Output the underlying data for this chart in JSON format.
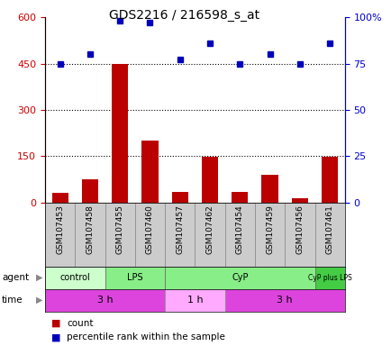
{
  "title": "GDS2216 / 216598_s_at",
  "samples": [
    "GSM107453",
    "GSM107458",
    "GSM107455",
    "GSM107460",
    "GSM107457",
    "GSM107462",
    "GSM107454",
    "GSM107459",
    "GSM107456",
    "GSM107461"
  ],
  "counts": [
    30,
    75,
    450,
    200,
    35,
    148,
    35,
    90,
    15,
    148
  ],
  "percentile_ranks": [
    75,
    80,
    98,
    97,
    77,
    86,
    75,
    80,
    75,
    86
  ],
  "ylim_left": [
    0,
    600
  ],
  "ylim_right": [
    0,
    100
  ],
  "yticks_left": [
    0,
    150,
    300,
    450,
    600
  ],
  "yticks_right": [
    0,
    25,
    50,
    75,
    100
  ],
  "hlines": [
    150,
    300,
    450
  ],
  "agent_groups": [
    {
      "label": "control",
      "start": 0,
      "end": 2,
      "color": "#ccffcc"
    },
    {
      "label": "LPS",
      "start": 2,
      "end": 4,
      "color": "#88ee88"
    },
    {
      "label": "CyP",
      "start": 4,
      "end": 9,
      "color": "#88ee88"
    },
    {
      "label": "CyP plus LPS",
      "start": 9,
      "end": 10,
      "color": "#44cc44"
    }
  ],
  "time_groups": [
    {
      "label": "3 h",
      "start": 0,
      "end": 4,
      "color": "#dd44dd"
    },
    {
      "label": "1 h",
      "start": 4,
      "end": 6,
      "color": "#ffaaff"
    },
    {
      "label": "3 h",
      "start": 6,
      "end": 10,
      "color": "#dd44dd"
    }
  ],
  "bar_color": "#bb0000",
  "dot_color": "#0000bb",
  "left_tick_color": "#cc0000",
  "right_tick_color": "#0000cc",
  "sample_bg": "#cccccc",
  "background_color": "#ffffff"
}
